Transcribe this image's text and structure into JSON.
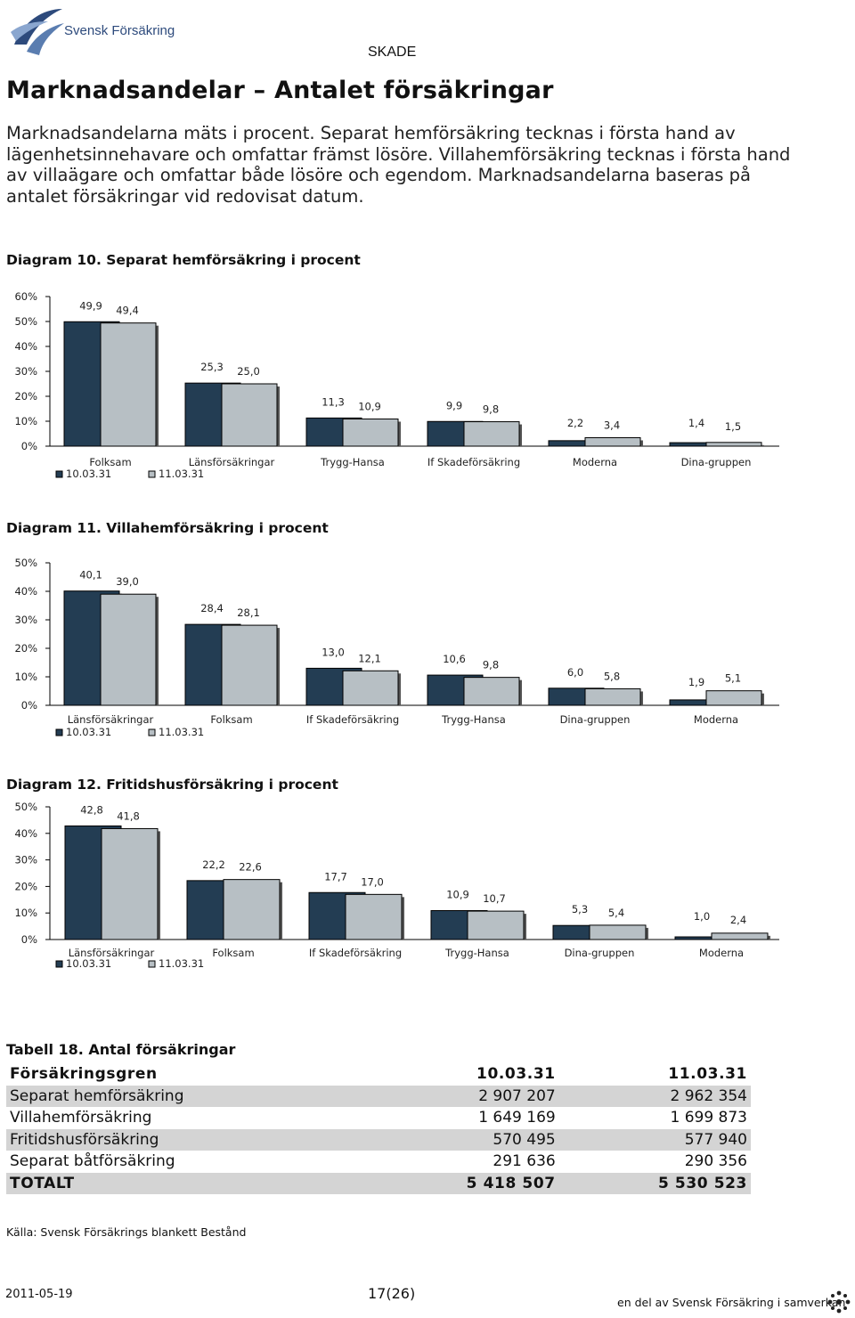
{
  "header": {
    "logo_text": "Svensk Försäkring",
    "section": "SKADE"
  },
  "title": "Marknadsandelar – Antalet försäkringar",
  "intro": "Marknadsandelarna mäts i procent. Separat hemförsäkring tecknas i första hand av lägenhetsinnehavare och omfattar främst lösöre. Villahemförsäkring tecknas i första hand av villaägare och omfattar både lösöre och egendom. Marknadsandelarna baseras på antalet försäkringar vid redovisat datum.",
  "colors": {
    "series_2010": "#233d53",
    "series_2011": "#b7bfc4",
    "table_shade": "#d4d4d4",
    "logo": "#2d4a7c"
  },
  "chart_data": [
    {
      "type": "bar",
      "title": "Diagram 10. Separat hemförsäkring i procent",
      "categories": [
        "Folksam",
        "Länsförsäkringar",
        "Trygg-Hansa",
        "If Skadeförsäkring",
        "Moderna",
        "Dina-gruppen"
      ],
      "series": [
        {
          "name": "10.03.31",
          "values": [
            49.9,
            25.3,
            11.3,
            9.9,
            2.2,
            1.4
          ],
          "labels": [
            "49,9",
            "25,3",
            "11,3",
            "9,9",
            "2,2",
            "1,4"
          ]
        },
        {
          "name": "11.03.31",
          "values": [
            49.4,
            25.0,
            10.9,
            9.8,
            3.4,
            1.5
          ],
          "labels": [
            "49,4",
            "25,0",
            "10,9",
            "9,8",
            "3,4",
            "1,5"
          ]
        }
      ],
      "yticks": [
        "0%",
        "10%",
        "20%",
        "30%",
        "40%",
        "50%",
        "60%"
      ],
      "ylim": [
        0,
        60
      ],
      "grid": false,
      "legend": "bottom-left"
    },
    {
      "type": "bar",
      "title": "Diagram 11. Villahemförsäkring i procent",
      "categories": [
        "Länsförsäkringar",
        "Folksam",
        "If Skadeförsäkring",
        "Trygg-Hansa",
        "Dina-gruppen",
        "Moderna"
      ],
      "series": [
        {
          "name": "10.03.31",
          "values": [
            40.1,
            28.4,
            13.0,
            10.6,
            6.0,
            1.9
          ],
          "labels": [
            "40,1",
            "28,4",
            "13,0",
            "10,6",
            "6,0",
            "1,9"
          ]
        },
        {
          "name": "11.03.31",
          "values": [
            39.0,
            28.1,
            12.1,
            9.8,
            5.8,
            5.1
          ],
          "labels": [
            "39,0",
            "28,1",
            "12,1",
            "9,8",
            "5,8",
            "5,1"
          ]
        }
      ],
      "yticks": [
        "0%",
        "10%",
        "20%",
        "30%",
        "40%",
        "50%"
      ],
      "ylim": [
        0,
        50
      ],
      "grid": false,
      "legend": "bottom-left"
    },
    {
      "type": "bar",
      "title": "Diagram 12. Fritidshusförsäkring i procent",
      "categories": [
        "Länsförsäkringar",
        "Folksam",
        "If Skadeförsäkring",
        "Trygg-Hansa",
        "Dina-gruppen",
        "Moderna"
      ],
      "series": [
        {
          "name": "10.03.31",
          "values": [
            42.8,
            22.2,
            17.7,
            10.9,
            5.3,
            1.0
          ],
          "labels": [
            "42,8",
            "22,2",
            "17,7",
            "10,9",
            "5,3",
            "1,0"
          ]
        },
        {
          "name": "11.03.31",
          "values": [
            41.8,
            22.6,
            17.0,
            10.7,
            5.4,
            2.4
          ],
          "labels": [
            "41,8",
            "22,6",
            "17,0",
            "10,7",
            "5,4",
            "2,4"
          ]
        }
      ],
      "yticks": [
        "0%",
        "10%",
        "20%",
        "30%",
        "40%",
        "50%"
      ],
      "ylim": [
        0,
        50
      ],
      "grid": false,
      "legend": "bottom-left"
    }
  ],
  "table": {
    "title": "Tabell 18. Antal försäkringar",
    "headers": [
      "Försäkringsgren",
      "10.03.31",
      "11.03.31"
    ],
    "rows": [
      [
        "Separat hemförsäkring",
        "2 907 207",
        "2 962 354"
      ],
      [
        "Villahemförsäkring",
        "1 649 169",
        "1 699 873"
      ],
      [
        "Fritidshusförsäkring",
        "570 495",
        "577 940"
      ],
      [
        "Separat båtförsäkring",
        "291 636",
        "290 356"
      ]
    ],
    "total": [
      "TOTALT",
      "5 418 507",
      "5 530 523"
    ]
  },
  "source": "Källa: Svensk Försäkrings blankett Bestånd",
  "footer": {
    "date": "2011-05-19",
    "page": "17(26)",
    "tagline": "en del av Svensk Försäkring i samverkan"
  }
}
